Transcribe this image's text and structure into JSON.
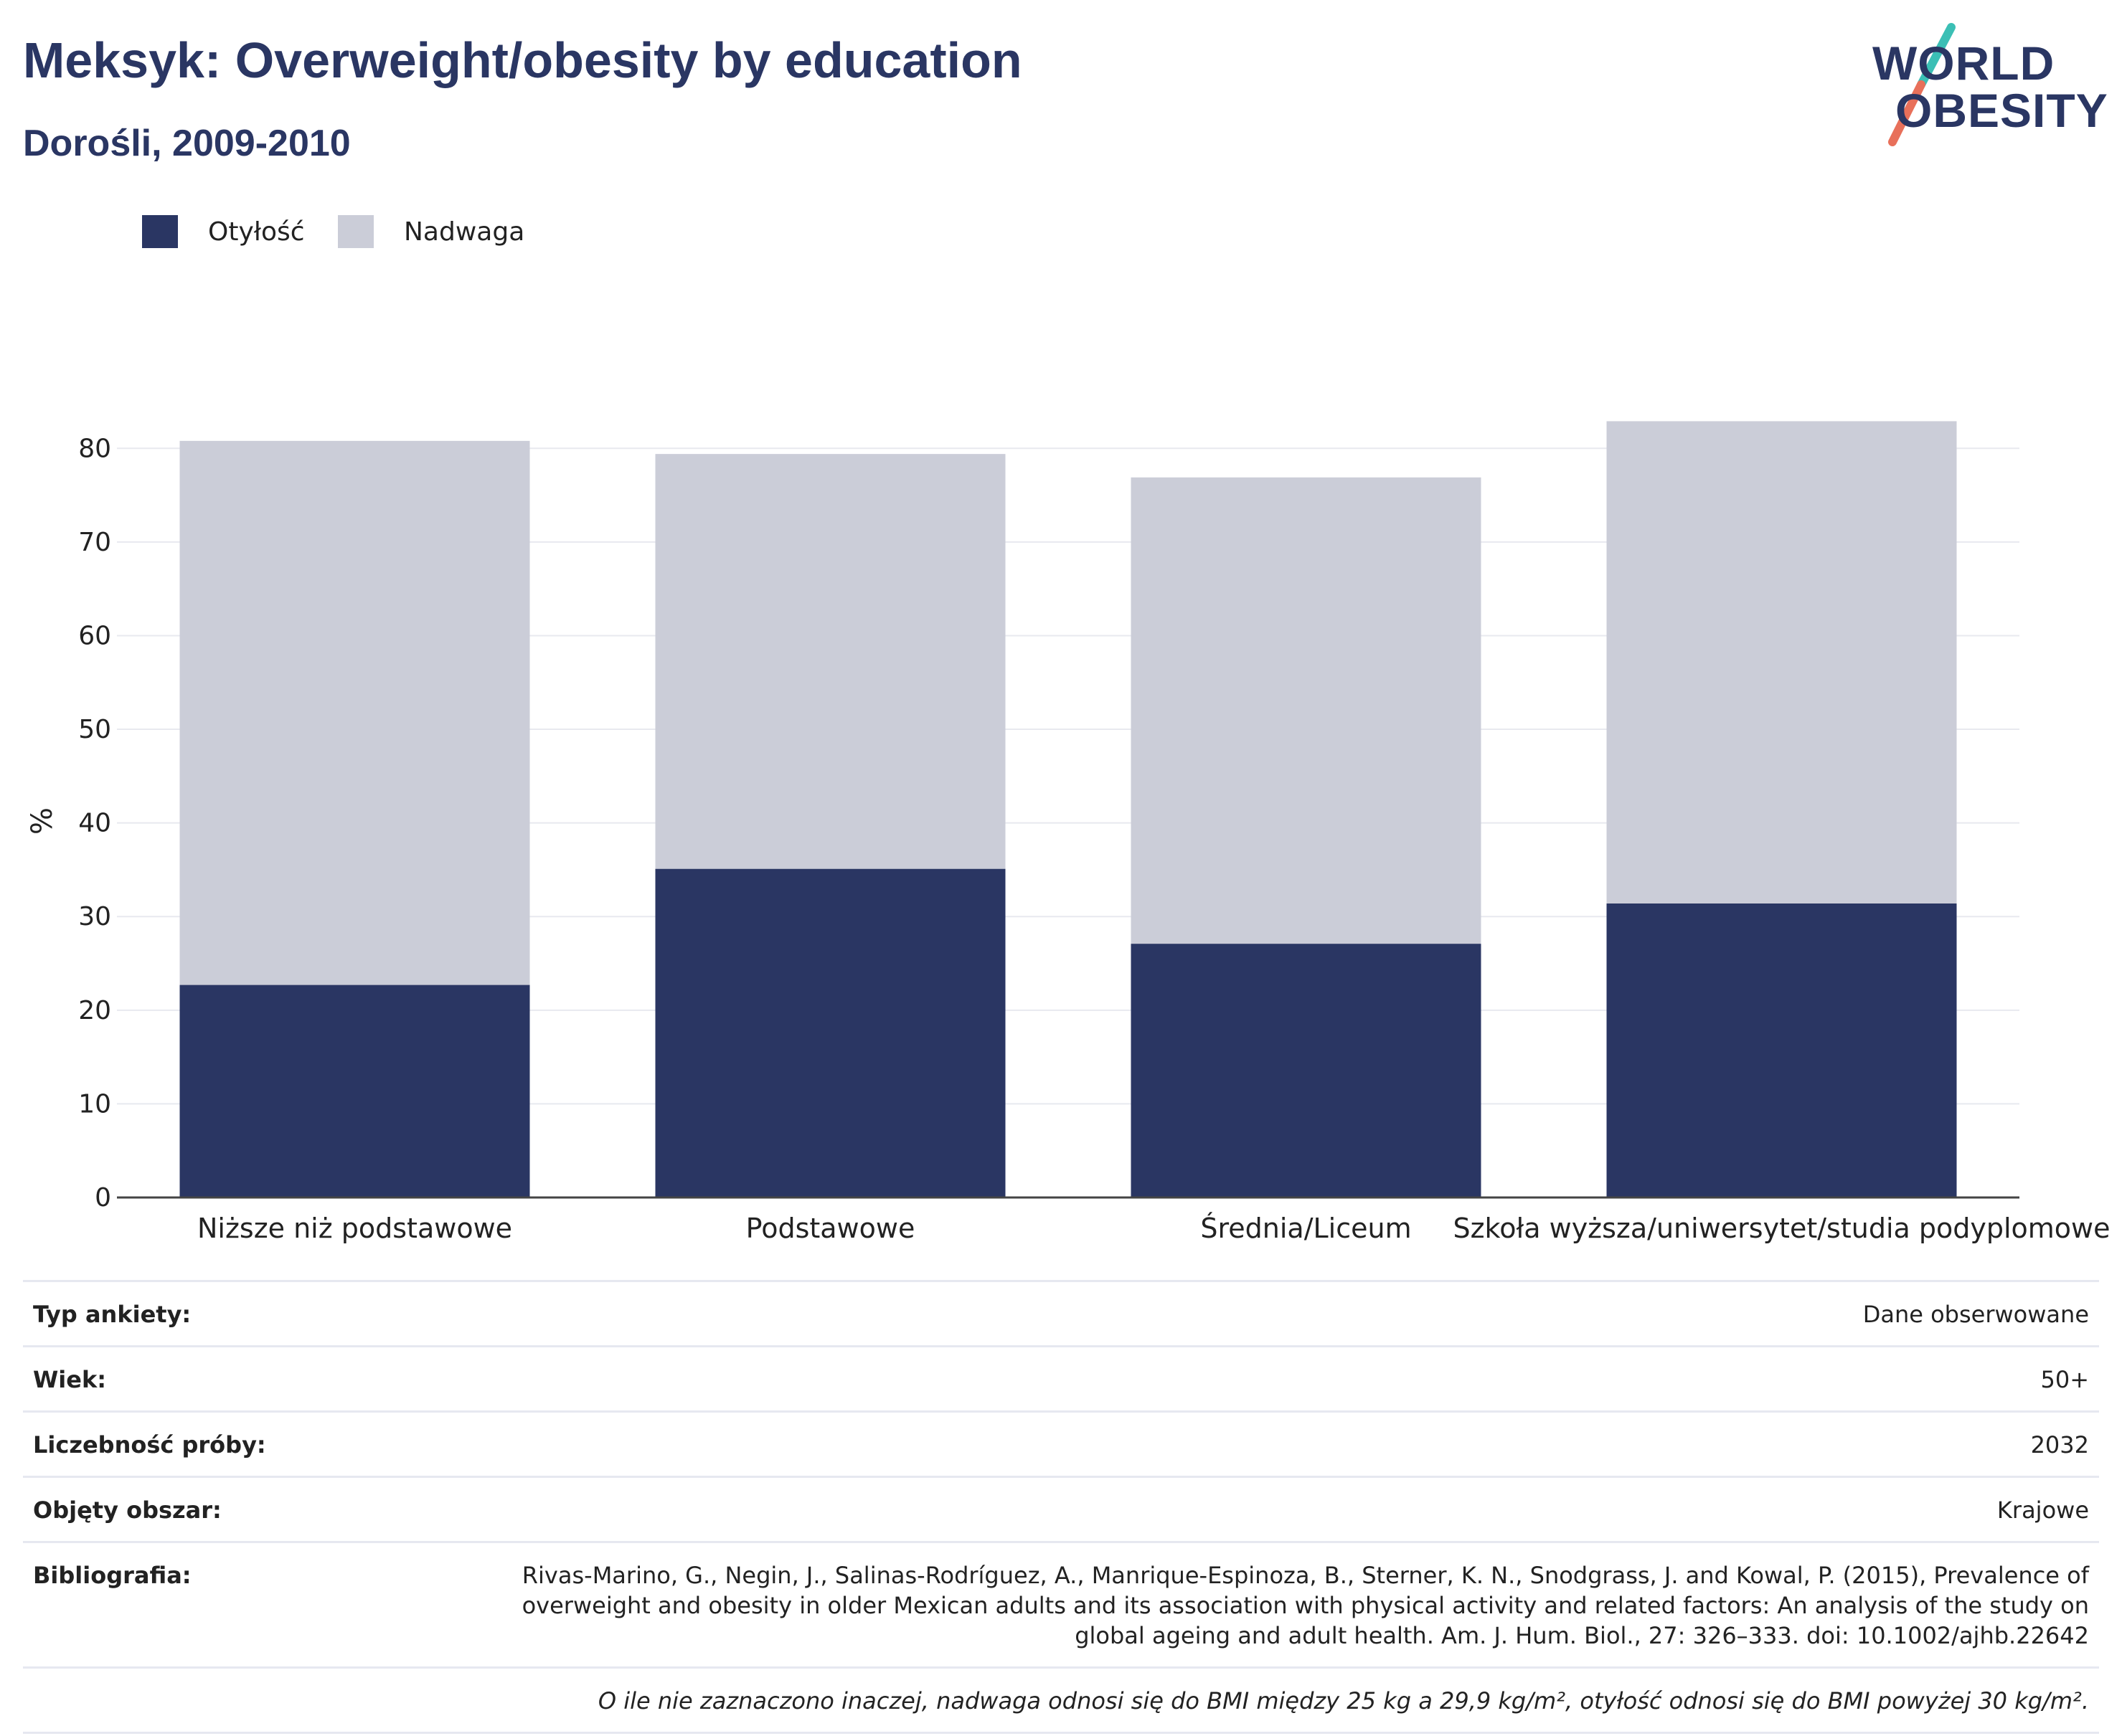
{
  "header": {
    "title": "Meksyk: Overweight/obesity by education",
    "subtitle": "Dorośli, 2009-2010"
  },
  "logo": {
    "line1": "WORLD",
    "line2": "OBESITY",
    "colors": {
      "text": "#2a3663",
      "slash_top": "#3bbfb5",
      "slash_bottom": "#e8705a"
    }
  },
  "legend": [
    {
      "label": "Otyłość",
      "color": "#2a3663"
    },
    {
      "label": "Nadwaga",
      "color": "#cbcdd8"
    }
  ],
  "chart_data": {
    "type": "bar",
    "stacked": true,
    "categories": [
      "Niższe niż podstawowe",
      "Podstawowe",
      "Średnia/Liceum",
      "Szkoła wyższa/uniwersytet/studia podyplomowe"
    ],
    "series": [
      {
        "name": "Otyłość",
        "values": [
          22.7,
          35.1,
          27.1,
          31.4
        ],
        "color": "#2a3663"
      },
      {
        "name": "Nadwaga",
        "values": [
          58.1,
          44.3,
          49.8,
          51.5
        ],
        "color": "#cbcdd8"
      }
    ],
    "ylabel": "%",
    "xlabel": "",
    "ylim": [
      0,
      85
    ],
    "yticks": [
      0,
      10,
      20,
      30,
      40,
      50,
      60,
      70,
      80
    ],
    "grid": true,
    "legend_position": "top-left"
  },
  "info": {
    "rows": [
      {
        "key": "Typ ankiety:",
        "value": "Dane obserwowane"
      },
      {
        "key": "Wiek:",
        "value": "50+"
      },
      {
        "key": "Liczebność próby:",
        "value": "2032"
      },
      {
        "key": "Objęty obszar:",
        "value": "Krajowe"
      },
      {
        "key": "Bibliografia:",
        "value": "Rivas-Marino, G., Negin, J., Salinas-Rodríguez, A., Manrique-Espinoza, B., Sterner, K. N., Snodgrass, J. and Kowal, P. (2015), Prevalence of overweight and obesity in older Mexican adults and its association with physical activity and related factors: An analysis of the study on global ageing and adult health. Am. J. Hum. Biol., 27: 326–333. doi: 10.1002/ajhb.22642"
      }
    ],
    "note": "O ile nie zaznaczono inaczej, nadwaga odnosi się do BMI między 25 kg a 29,9 kg/m², otyłość odnosi się do BMI powyżej 30 kg/m²."
  }
}
